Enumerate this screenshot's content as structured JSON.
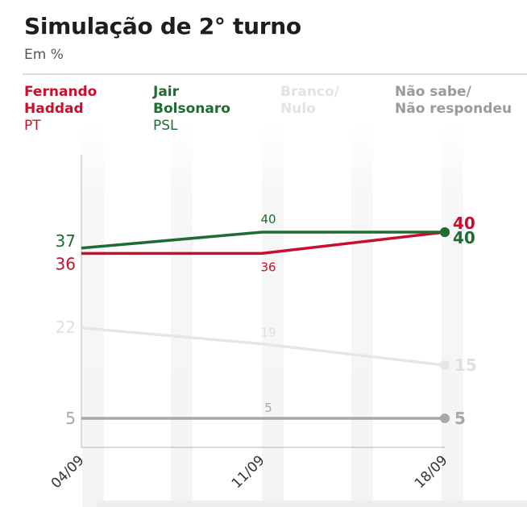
{
  "title": "Simulação de 2° turno",
  "subtitle": "Em %",
  "legend": [
    {
      "name": "Fernando\nHaddad",
      "party": "PT",
      "color": "#c8102e"
    },
    {
      "name": "Jair\nBolsonaro",
      "party": "PSL",
      "color": "#1f6b33"
    },
    {
      "name": "Branco/\nNulo",
      "party": "",
      "color": "#e3e3e3"
    },
    {
      "name": "Não sabe/\nNão respondeu",
      "party": "",
      "color": "#a8a8a8"
    }
  ],
  "chart_data": {
    "type": "line",
    "title": "Simulação de 2° turno",
    "ylabel": "Em %",
    "xlabel": "",
    "categories": [
      "04/09",
      "11/09",
      "18/09"
    ],
    "ylim": [
      0,
      50
    ],
    "grid": "vertical bands",
    "series": [
      {
        "name": "Fernando Haddad (PT)",
        "values": [
          36,
          36,
          40
        ],
        "color": "#c8102e"
      },
      {
        "name": "Jair Bolsonaro (PSL)",
        "values": [
          37,
          40,
          40
        ],
        "color": "#1f6b33"
      },
      {
        "name": "Branco/Nulo",
        "values": [
          22,
          19,
          15
        ],
        "color": "#e6e6e6"
      },
      {
        "name": "Não sabe/Não respondeu",
        "values": [
          5,
          5,
          5
        ],
        "color": "#a8a8a8"
      }
    ]
  }
}
